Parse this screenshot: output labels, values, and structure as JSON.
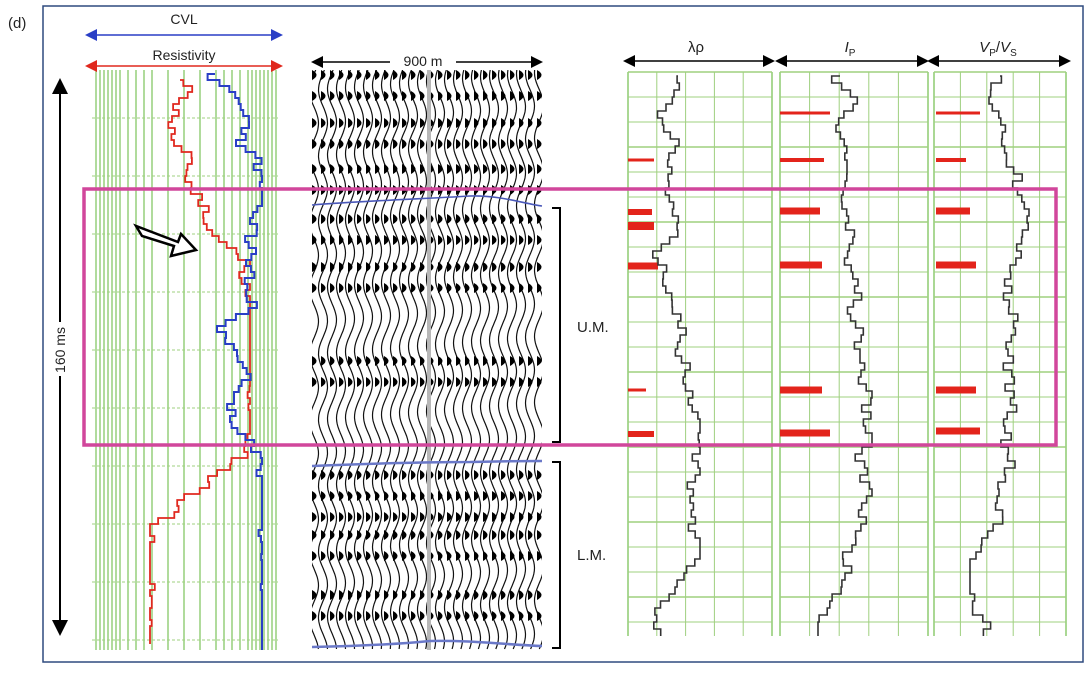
{
  "panel_label": "(d)",
  "logs": {
    "cvl_label": "CVL",
    "resistivity_label": "Resistivity",
    "time_scale_label": "160 ms"
  },
  "seismic": {
    "distance_label": "900 m"
  },
  "zones": {
    "upper": "U.M.",
    "lower": "L.M."
  },
  "tracks": {
    "lambda_rho": "λρ",
    "ip": {
      "main": "I",
      "sub": "P"
    },
    "vpvs": {
      "num": "V",
      "num_sub": "P",
      "slash": "/",
      "den": "V",
      "den_sub": "S"
    }
  },
  "colors": {
    "border": "#2f4a7f",
    "grid_green": "#7cc35a",
    "resistivity_red": "#e0281e",
    "cvl_blue": "#2a3fc6",
    "highlight_magenta": "#d1469b",
    "marker_red": "#e3241b",
    "log_black": "#333333"
  }
}
